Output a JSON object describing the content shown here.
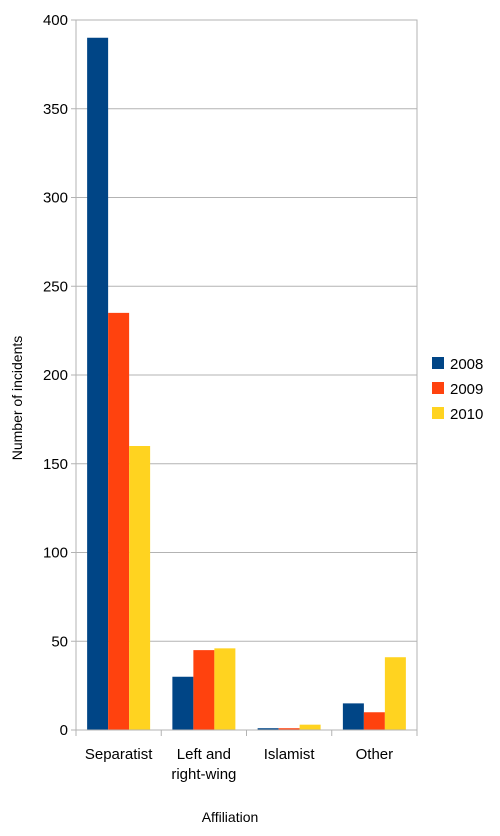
{
  "chart_data": {
    "type": "bar",
    "title": "",
    "xlabel": "Affiliation",
    "ylabel": "Number of incidents",
    "categories": [
      [
        "Separatist"
      ],
      [
        "Left and",
        "right-wing"
      ],
      [
        "Islamist"
      ],
      [
        "Other"
      ]
    ],
    "series": [
      {
        "name": "2008",
        "color": "#004586",
        "values": [
          390,
          30,
          1,
          15
        ]
      },
      {
        "name": "2009",
        "color": "#ff420e",
        "values": [
          235,
          45,
          1,
          10
        ]
      },
      {
        "name": "2010",
        "color": "#ffd320",
        "values": [
          160,
          46,
          3,
          41
        ]
      }
    ],
    "ylim": [
      0,
      400
    ],
    "yticks": [
      0,
      50,
      100,
      150,
      200,
      250,
      300,
      350,
      400
    ],
    "grid": true,
    "legend": "right"
  }
}
